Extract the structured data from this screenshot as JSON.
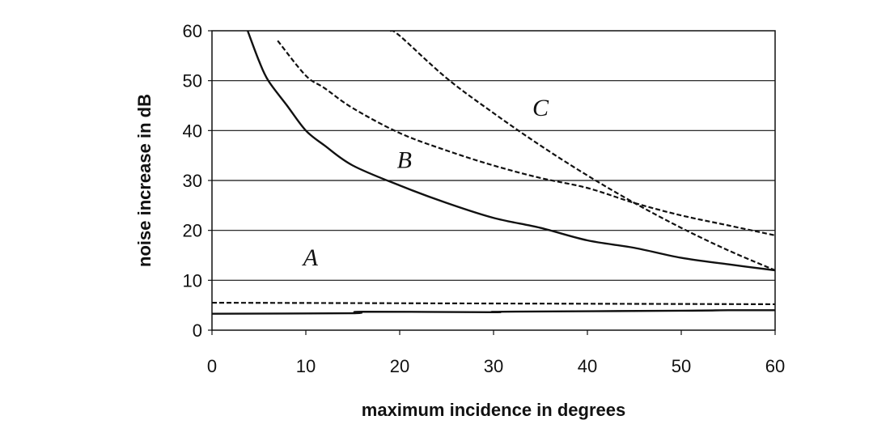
{
  "chart_data": {
    "type": "line",
    "xlabel": "maximum incidence in degrees",
    "ylabel": "noise increase in dB",
    "xlim": [
      0,
      60
    ],
    "ylim": [
      0,
      60
    ],
    "xticks": [
      "0",
      "10",
      "20",
      "30",
      "40",
      "50",
      "60"
    ],
    "yticks": [
      "0",
      "10",
      "20",
      "30",
      "40",
      "50",
      "60"
    ],
    "grid": "horizontal",
    "series": [
      {
        "label_text": "",
        "style": "solid",
        "x": [
          3.8,
          5,
          6,
          8,
          10,
          12,
          15,
          20,
          25,
          30,
          35,
          40,
          45,
          50,
          55,
          60
        ],
        "y": [
          60,
          54,
          50,
          45,
          40,
          37,
          33,
          29,
          25.5,
          22.5,
          20.5,
          18,
          16.5,
          14.5,
          13.2,
          12
        ]
      },
      {
        "label_text": "",
        "style": "dashed",
        "x": [
          7,
          10,
          12,
          15,
          20,
          25,
          30,
          35,
          40,
          45,
          50,
          55,
          60
        ],
        "y": [
          58,
          51,
          48.5,
          44.5,
          39.5,
          36,
          33,
          30.5,
          28.5,
          25.5,
          23,
          21,
          19
        ]
      },
      {
        "label_text": "",
        "style": "dashed",
        "x": [
          19,
          20,
          25,
          30,
          35,
          40,
          45,
          50,
          55,
          60
        ],
        "y": [
          60,
          59,
          50.5,
          43.5,
          37,
          31,
          25.5,
          20.5,
          16,
          12
        ]
      },
      {
        "label_text": "",
        "style": "dashed",
        "x": [
          0,
          60
        ],
        "y": [
          5.5,
          5.2
        ]
      },
      {
        "label_text": "",
        "style": "solid",
        "x": [
          0,
          15,
          16,
          30,
          31,
          50,
          55,
          60
        ],
        "y": [
          3.3,
          3.4,
          3.7,
          3.6,
          3.7,
          3.9,
          4.0,
          4.0
        ]
      }
    ],
    "annotations": [
      {
        "text": "A",
        "x": 10.5,
        "y": 13
      },
      {
        "text": "B",
        "x": 20.5,
        "y": 32.5
      },
      {
        "text": "C",
        "x": 35,
        "y": 43
      }
    ]
  }
}
